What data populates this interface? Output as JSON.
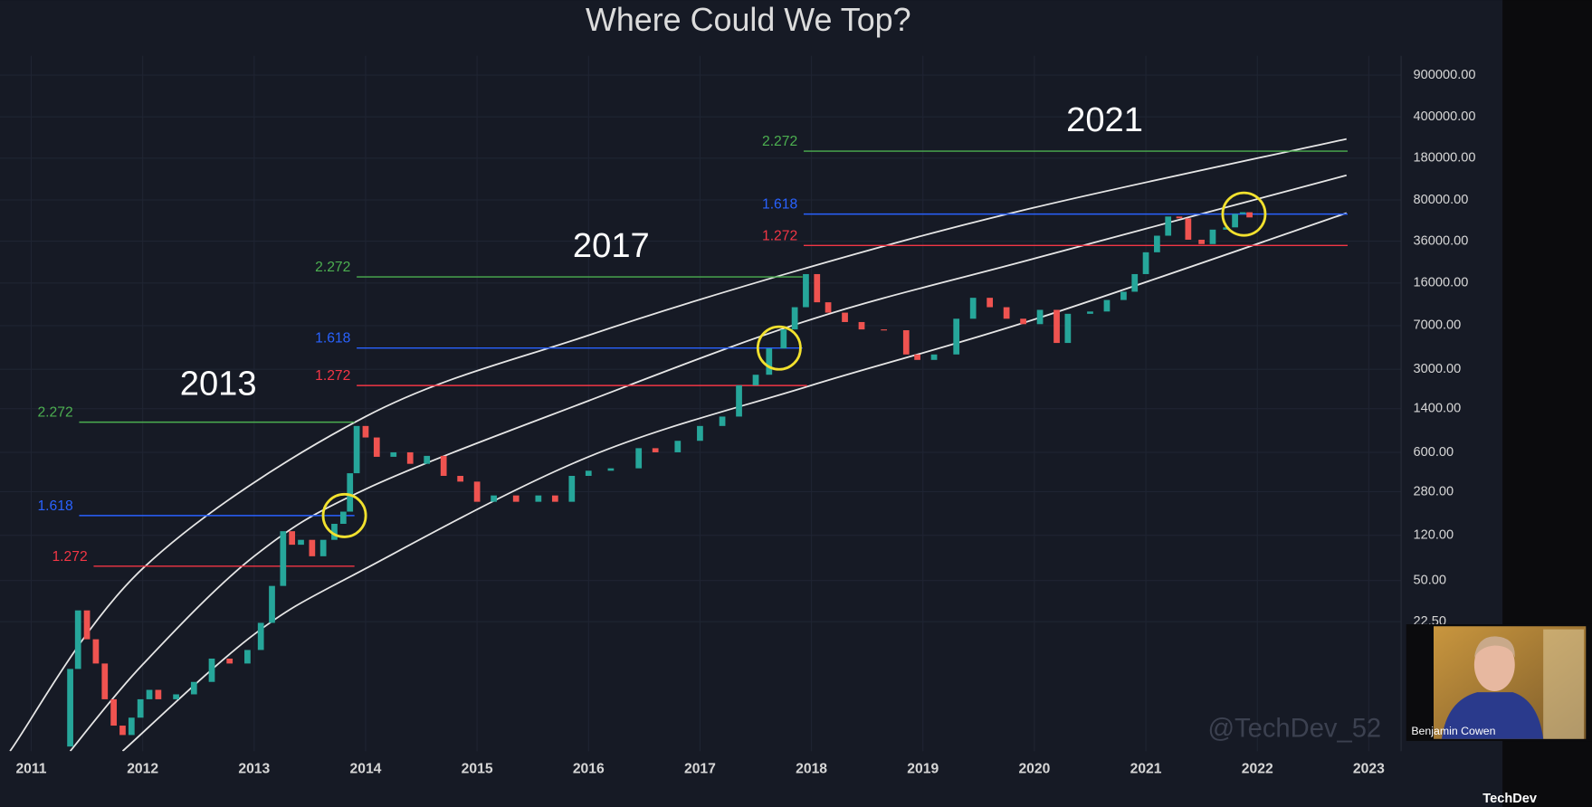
{
  "chart_data": {
    "type": "candlestick",
    "title": "Where Could We Top?",
    "log_scale": true,
    "grid": true,
    "up_color": "#26a69a",
    "down_color": "#ef5350",
    "xlim": [
      2010.72,
      2023.29
    ],
    "xticks": [
      2011,
      2012,
      2013,
      2014,
      2015,
      2016,
      2017,
      2018,
      2019,
      2020,
      2021,
      2022,
      2023
    ],
    "ylim": [
      1.83,
      1306000
    ],
    "yticks": [
      {
        "value": 900000,
        "label": "900000.00"
      },
      {
        "value": 400000,
        "label": "400000.00"
      },
      {
        "value": 180000,
        "label": "180000.00"
      },
      {
        "value": 80000,
        "label": "80000.00"
      },
      {
        "value": 36000,
        "label": "36000.00"
      },
      {
        "value": 16000,
        "label": "16000.00"
      },
      {
        "value": 7000,
        "label": "7000.00"
      },
      {
        "value": 3000,
        "label": "3000.00"
      },
      {
        "value": 1400,
        "label": "1400.00"
      },
      {
        "value": 600,
        "label": "600.00"
      },
      {
        "value": 280,
        "label": "280.00"
      },
      {
        "value": 120,
        "label": "120.00"
      },
      {
        "value": 50,
        "label": "50.00"
      },
      {
        "value": 22.5,
        "label": "22.50"
      }
    ],
    "x": [
      2011.35,
      2011.42,
      2011.5,
      2011.58,
      2011.66,
      2011.74,
      2011.82,
      2011.9,
      2011.98,
      2012.06,
      2012.14,
      2012.3,
      2012.46,
      2012.62,
      2012.78,
      2012.94,
      2013.06,
      2013.16,
      2013.26,
      2013.34,
      2013.42,
      2013.52,
      2013.62,
      2013.72,
      2013.8,
      2013.86,
      2013.92,
      2014.0,
      2014.1,
      2014.25,
      2014.4,
      2014.55,
      2014.7,
      2014.85,
      2015.0,
      2015.15,
      2015.35,
      2015.55,
      2015.7,
      2015.85,
      2016.0,
      2016.2,
      2016.45,
      2016.6,
      2016.8,
      2017.0,
      2017.2,
      2017.35,
      2017.5,
      2017.62,
      2017.75,
      2017.85,
      2017.95,
      2018.05,
      2018.15,
      2018.3,
      2018.45,
      2018.65,
      2018.85,
      2018.95,
      2019.1,
      2019.3,
      2019.45,
      2019.6,
      2019.75,
      2019.9,
      2020.05,
      2020.2,
      2020.3,
      2020.5,
      2020.65,
      2020.8,
      2020.9,
      2021.0,
      2021.1,
      2021.2,
      2021.3,
      2021.38,
      2021.5,
      2021.6,
      2021.72,
      2021.8,
      2021.87,
      2021.93
    ],
    "open": [
      2,
      9,
      28,
      16,
      10,
      5,
      3,
      2.5,
      3.5,
      5,
      6,
      5,
      5.5,
      7,
      11,
      10,
      13,
      22,
      45,
      130,
      100,
      110,
      80,
      110,
      150,
      190,
      400,
      1000,
      800,
      550,
      600,
      480,
      560,
      380,
      340,
      230,
      260,
      230,
      260,
      230,
      380,
      420,
      440,
      650,
      600,
      750,
      1000,
      1200,
      2200,
      2700,
      4500,
      6500,
      10000,
      19000,
      11000,
      9000,
      7500,
      6500,
      6400,
      4000,
      3600,
      4000,
      8000,
      12000,
      10000,
      8000,
      7200,
      9500,
      5000,
      8800,
      9200,
      11500,
      13500,
      19000,
      29000,
      40000,
      58000,
      56000,
      37000,
      34000,
      45000,
      47000,
      61000,
      63000
    ],
    "close": [
      9,
      28,
      16,
      10,
      5,
      3,
      2.5,
      3.5,
      5,
      6,
      5,
      5.5,
      7,
      11,
      10,
      13,
      22,
      45,
      130,
      100,
      110,
      80,
      110,
      150,
      190,
      400,
      1000,
      800,
      550,
      600,
      480,
      560,
      380,
      340,
      230,
      260,
      230,
      260,
      230,
      380,
      420,
      440,
      650,
      600,
      750,
      1000,
      1200,
      2200,
      2700,
      4500,
      6500,
      10000,
      19000,
      11000,
      9000,
      7500,
      6500,
      6400,
      4000,
      3600,
      4000,
      8000,
      12000,
      10000,
      8000,
      7200,
      9500,
      5000,
      8800,
      9200,
      11500,
      13500,
      19000,
      29000,
      40000,
      58000,
      56000,
      37000,
      34000,
      45000,
      47000,
      61000,
      63000,
      57000
    ],
    "curves": [
      {
        "color": "#e6e6e6",
        "x": [
          2010.81,
          2012.0,
          2014.0,
          2016.0,
          2018.0,
          2020.0,
          2022.8
        ],
        "values": [
          1.83,
          63,
          1200,
          5800,
          22000,
          69000,
          261000
        ]
      },
      {
        "color": "#e6e6e6",
        "x": [
          2011.35,
          2012.0,
          2013.0,
          2014.0,
          2016.0,
          2018.0,
          2020.0,
          2022.8
        ],
        "values": [
          1.83,
          9.8,
          80,
          294,
          1630,
          7900,
          25700,
          129000
        ]
      },
      {
        "color": "#e6e6e6",
        "x": [
          2011.82,
          2013.0,
          2014.0,
          2016.0,
          2018.0,
          2020.0,
          2022.8
        ],
        "values": [
          1.83,
          17.6,
          63,
          550,
          2200,
          7900,
          62000
        ]
      }
    ],
    "fib_levels": [
      {
        "label": "2.272",
        "value": 1077,
        "start": 2011.43,
        "end": 2013.9,
        "color": "#4caf50"
      },
      {
        "label": "1.618",
        "value": 176,
        "start": 2011.43,
        "end": 2013.9,
        "color": "#2962ff"
      },
      {
        "label": "1.272",
        "value": 66,
        "start": 2011.56,
        "end": 2013.9,
        "color": "#f23645"
      },
      {
        "label": "2.272",
        "value": 18000,
        "start": 2013.92,
        "end": 2017.92,
        "color": "#4caf50"
      },
      {
        "label": "1.618",
        "value": 4530,
        "start": 2013.92,
        "end": 2017.92,
        "color": "#2962ff"
      },
      {
        "label": "1.272",
        "value": 2190,
        "start": 2013.92,
        "end": 2017.96,
        "color": "#f23645"
      },
      {
        "label": "2.272",
        "value": 206000,
        "start": 2017.93,
        "end": 2022.81,
        "color": "#4caf50"
      },
      {
        "label": "1.618",
        "value": 60800,
        "start": 2017.93,
        "end": 2022.81,
        "color": "#2962ff"
      },
      {
        "label": "1.272",
        "value": 33100,
        "start": 2017.93,
        "end": 2022.81,
        "color": "#f23645"
      }
    ],
    "highlights": {
      "color": "#f2e12e",
      "x": [
        2013.81,
        2017.71,
        2021.88
      ],
      "values": [
        176,
        4530,
        60800
      ]
    },
    "annotations": [
      "2013",
      "2017",
      "2021"
    ],
    "watermark": "@TechDev_52"
  },
  "overlay": {
    "caption": "Benjamin Cowen",
    "channel": "TechDev"
  }
}
